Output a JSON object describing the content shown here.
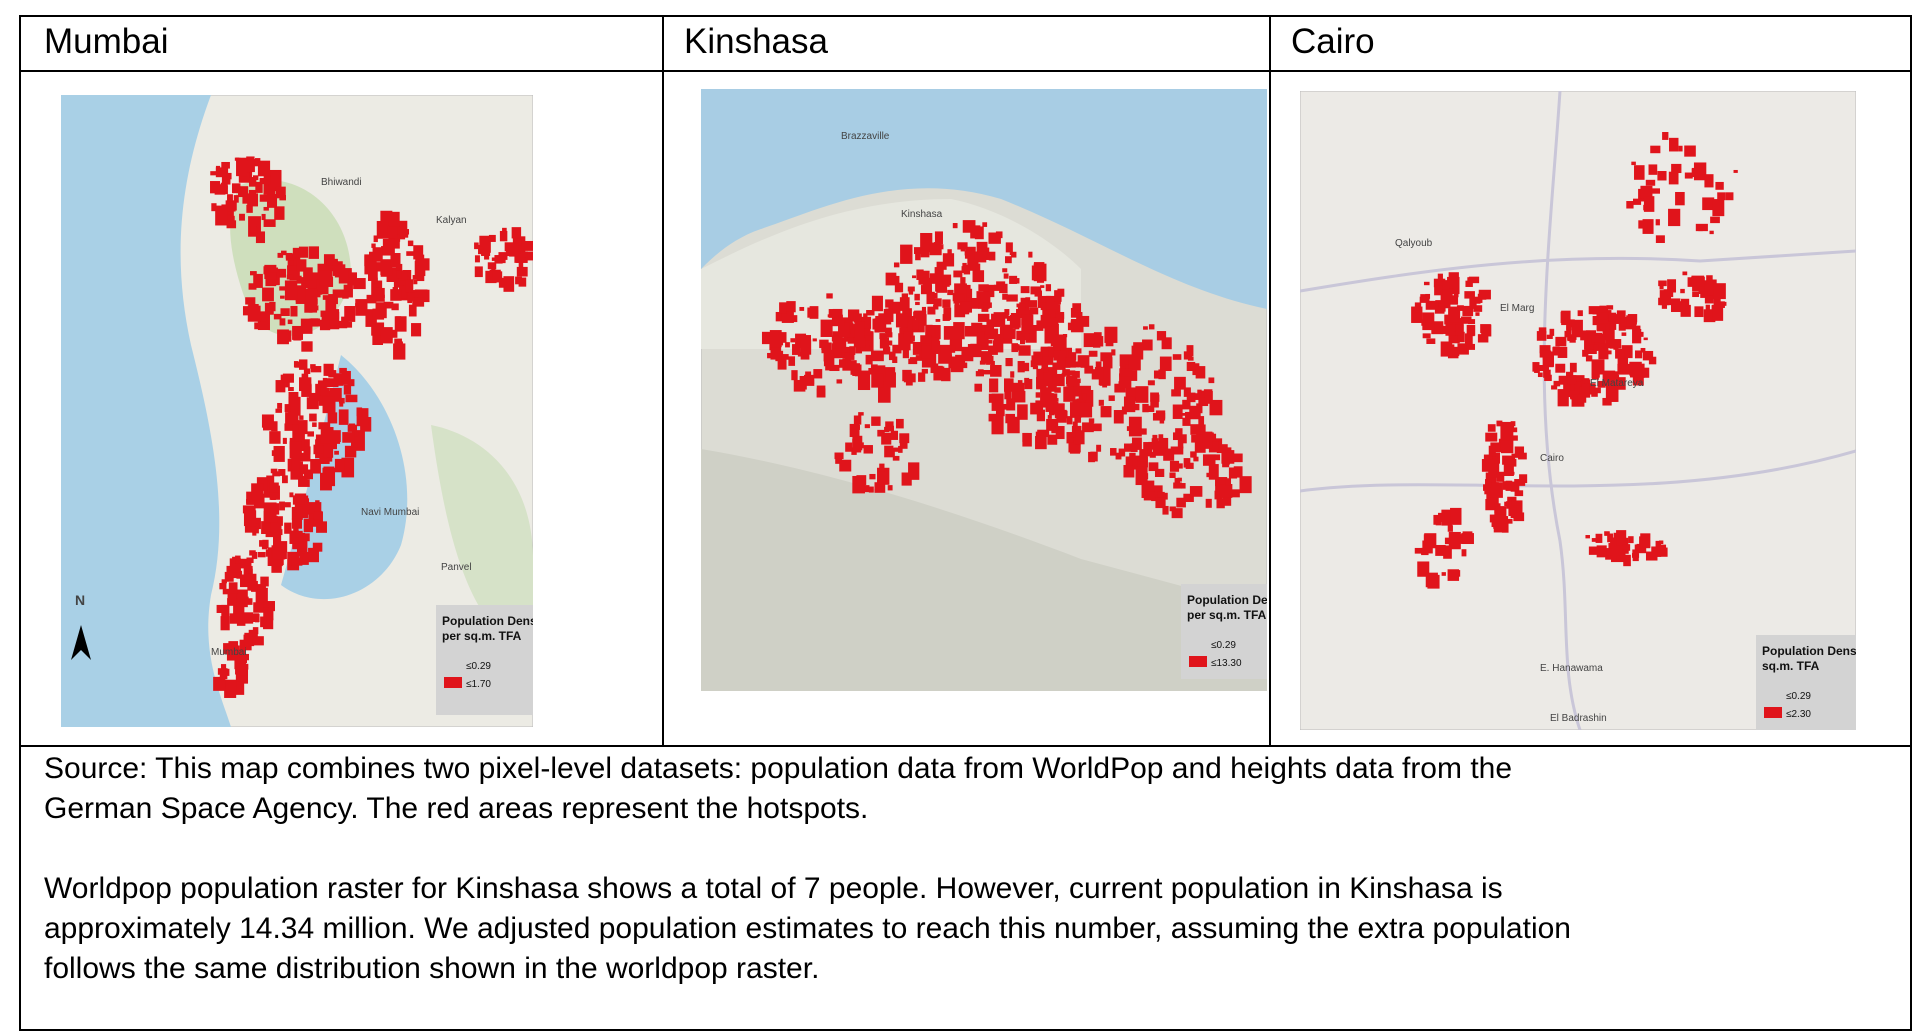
{
  "table": {
    "header": [
      "Mumbai",
      "Kinshasa",
      "Cairo"
    ],
    "maps": [
      {
        "labels": [
          "Bhiwandi",
          "Kalyan",
          "Navi Mumbai",
          "Panvel",
          "Mumbai",
          "N"
        ],
        "legend": {
          "title": [
            "Population Density",
            "per sq.m. TFA"
          ],
          "low": "≤0.29",
          "high": "≤1.70"
        }
      },
      {
        "labels": [
          "Brazzaville",
          "Kinshasa"
        ],
        "legend": {
          "title": [
            "Population De",
            "per sq.m. TFA"
          ],
          "low": "≤0.29",
          "high": "≤13.30"
        }
      },
      {
        "labels": [
          "Qalyoub",
          "El Marg",
          "El Matareya",
          "Cairo",
          "E. Hanawama",
          "El Badrashin"
        ],
        "legend": {
          "title": [
            "Population Density per",
            "sq.m. TFA"
          ],
          "low": "≤0.29",
          "high": "≤2.30"
        }
      }
    ],
    "caption": [
      [
        "Source: This map combines two pixel-level datasets: population data from WorldPop and heights data from the",
        "German Space Agency. The red areas represent the hotspots."
      ],
      [
        "Worldpop population raster for Kinshasa shows a total of 7 people. However, current population in Kinshasa is",
        "approximately 14.34 million. We adjusted population estimates to reach this number, assuming the extra population",
        "follows the same distribution shown in the worldpop raster."
      ]
    ]
  }
}
